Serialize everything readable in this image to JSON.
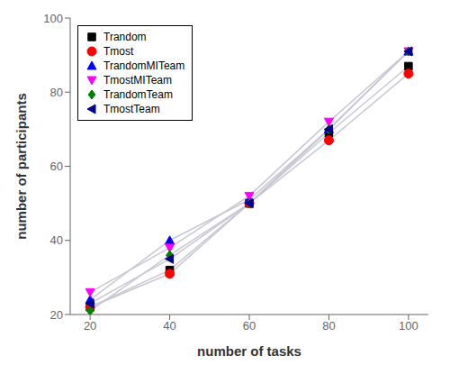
{
  "chart_data": {
    "type": "line",
    "xlabel": "number of tasks",
    "ylabel": "number of participants",
    "x": [
      20,
      40,
      60,
      80,
      100
    ],
    "series": [
      {
        "name": "Trandom",
        "color": "#000000",
        "marker": "square",
        "values": [
          22,
          32,
          50,
          69,
          87
        ]
      },
      {
        "name": "Tmost",
        "color": "#ff0000",
        "marker": "circle",
        "values": [
          22,
          31,
          50,
          67,
          85
        ]
      },
      {
        "name": "TrandomMITeam",
        "color": "#0000ff",
        "marker": "triangle-up",
        "values": [
          24,
          40,
          51,
          70,
          91
        ]
      },
      {
        "name": "TmostMITeam",
        "color": "#ff00ff",
        "marker": "triangle-down",
        "values": [
          26,
          38,
          52,
          72,
          91
        ]
      },
      {
        "name": "TrandomTeam",
        "color": "#008000",
        "marker": "diamond",
        "values": [
          21,
          36,
          50,
          70,
          91
        ]
      },
      {
        "name": "TmostTeam",
        "color": "#00008b",
        "marker": "triangle-left",
        "values": [
          23,
          35,
          50,
          70,
          91
        ]
      }
    ],
    "color": "#c8c8d4",
    "xlim": [
      15,
      105
    ],
    "ylim": [
      20,
      100
    ],
    "xticks": [
      20,
      40,
      60,
      80,
      100
    ],
    "yticks": [
      20,
      40,
      60,
      80,
      100
    ],
    "grid": false,
    "legend": "upper left"
  }
}
